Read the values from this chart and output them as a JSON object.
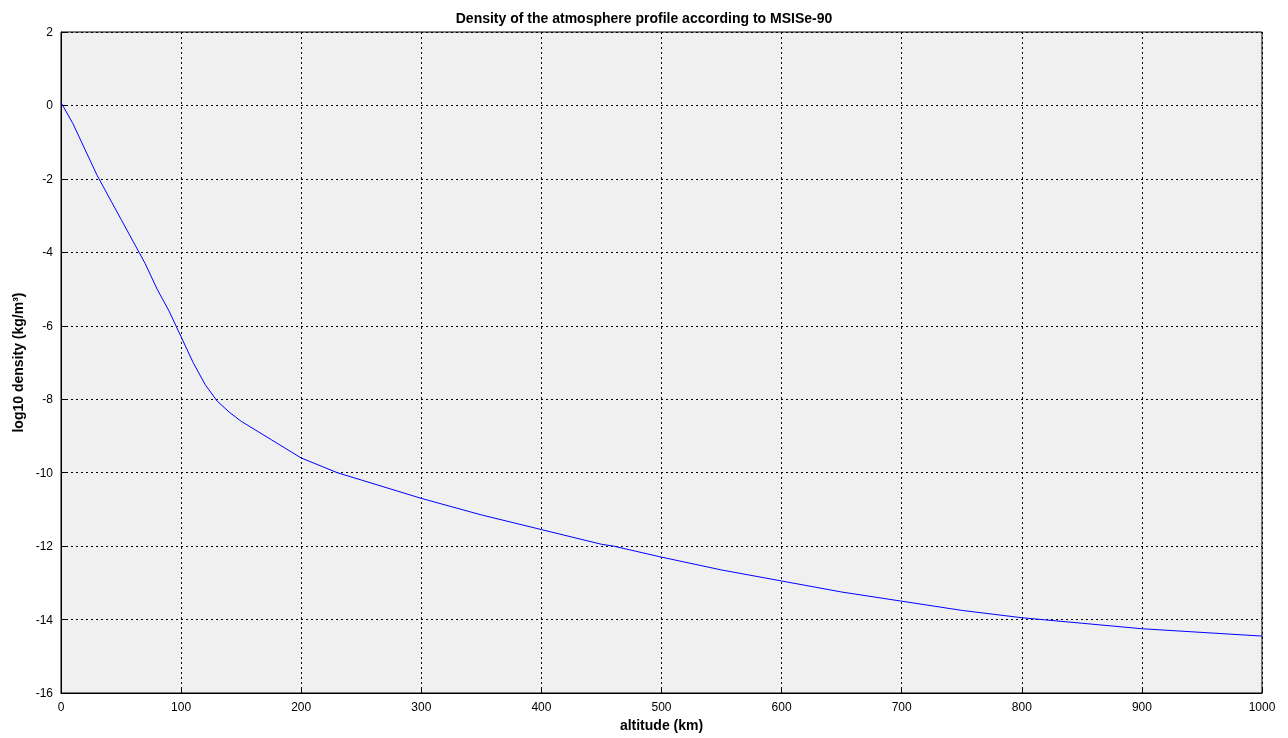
{
  "chart_data": {
    "type": "line",
    "title": "Density of the atmosphere profile according to MSISe-90",
    "xlabel": "altitude (km)",
    "ylabel": "log10 density (kg/m³)",
    "x": [
      0,
      10,
      20,
      30,
      40,
      50,
      60,
      70,
      80,
      90,
      100,
      110,
      120,
      130,
      140,
      150,
      175,
      200,
      230,
      250,
      300,
      350,
      400,
      450,
      460,
      500,
      550,
      600,
      650,
      700,
      750,
      800,
      850,
      900,
      950,
      1000
    ],
    "series": [
      {
        "color": "#0000ff",
        "values": [
          0.08,
          -0.5,
          -1.2,
          -1.9,
          -2.5,
          -3.1,
          -3.7,
          -4.3,
          -5.0,
          -5.6,
          -6.3,
          -7.0,
          -7.6,
          -8.05,
          -8.35,
          -8.6,
          -9.1,
          -9.6,
          -10.0,
          -10.2,
          -10.7,
          -11.15,
          -11.55,
          -11.95,
          -12.0,
          -12.3,
          -12.65,
          -12.95,
          -13.25,
          -13.5,
          -13.75,
          -13.95,
          -14.1,
          -14.25,
          -14.35,
          -14.45
        ]
      }
    ],
    "xlim": [
      0,
      1000
    ],
    "xticks": [
      0,
      100,
      200,
      300,
      400,
      500,
      600,
      700,
      800,
      900,
      1000
    ],
    "ylim": [
      -16,
      2
    ],
    "yticks": [
      -16,
      -14,
      -12,
      -10,
      -8,
      -6,
      -4,
      -2,
      0,
      2
    ],
    "grid": true,
    "marker": "none",
    "line_style": "solid"
  }
}
